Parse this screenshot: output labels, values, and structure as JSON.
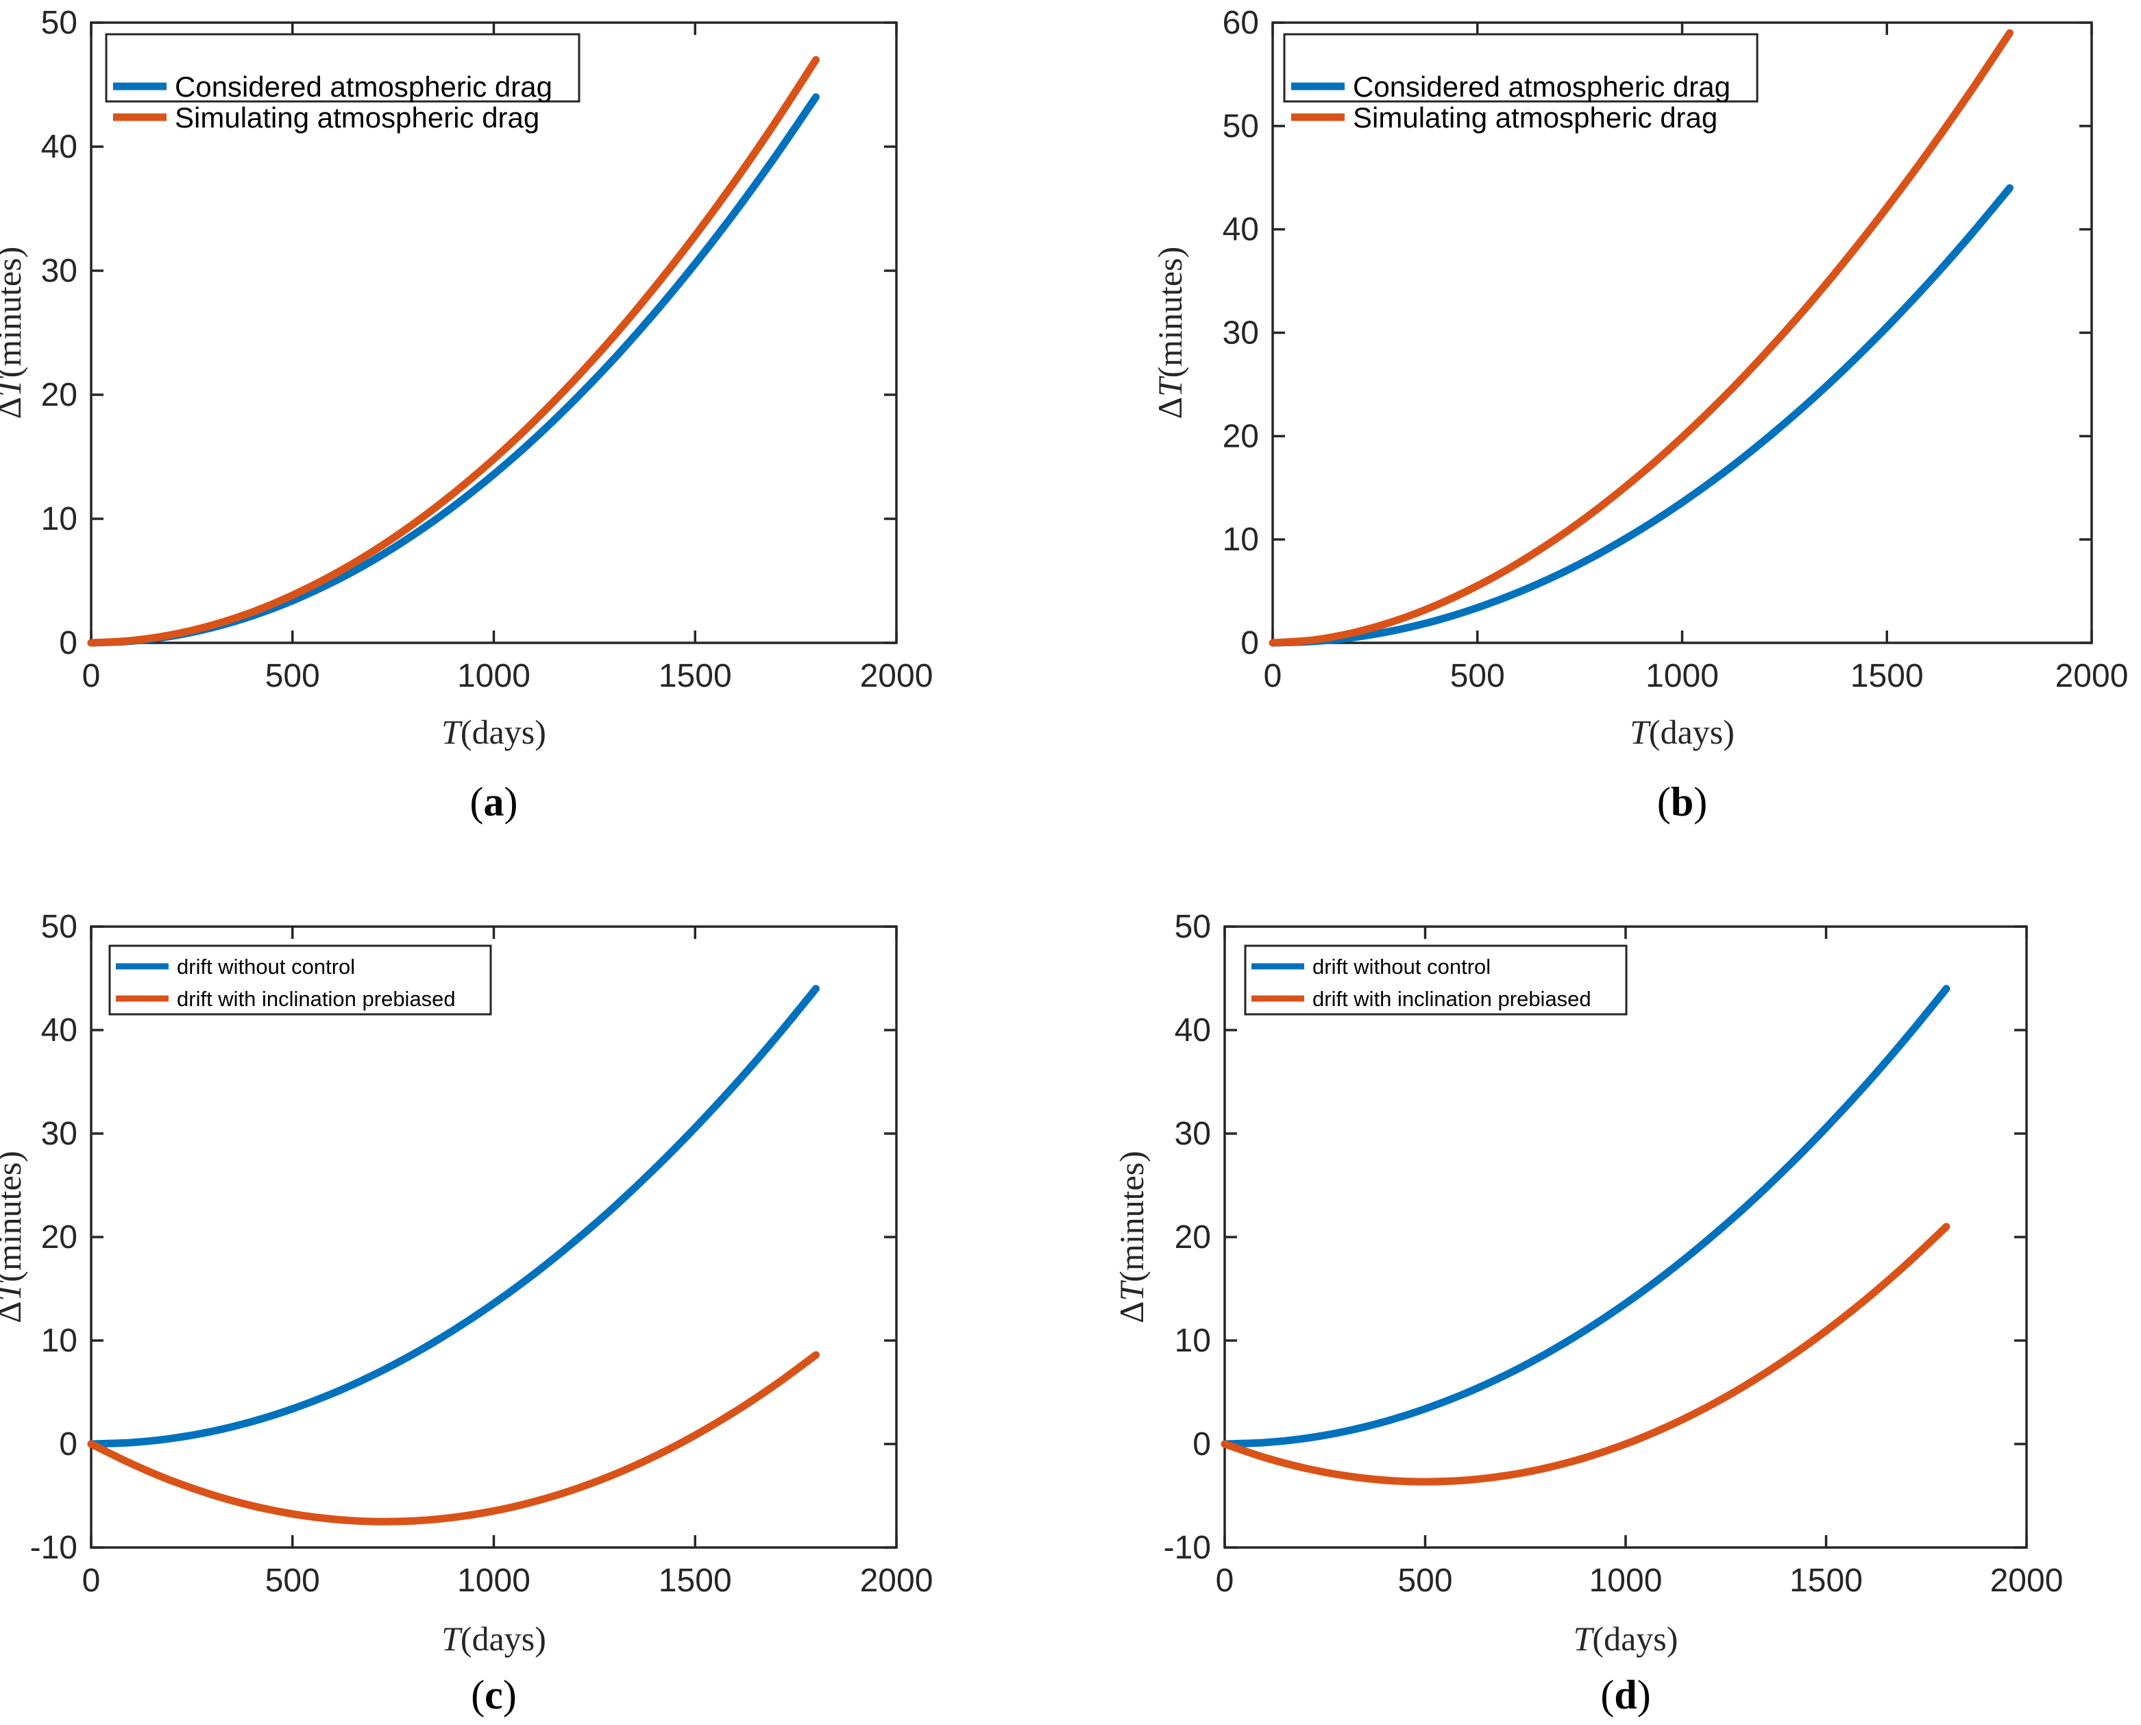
{
  "figure_bg": "#ffffff",
  "colors": {
    "blue": "#0072BD",
    "orange": "#D95319",
    "axis": "#262626",
    "text": "#262626",
    "sublabel": "#000000"
  },
  "x_days": [
    0,
    100,
    200,
    300,
    400,
    500,
    600,
    700,
    800,
    900,
    1000,
    1100,
    1200,
    1300,
    1400,
    1500,
    1600,
    1700,
    1800
  ],
  "chart_data": [
    {
      "type": "line",
      "sublabel": "(a)",
      "xlabel": "T(days)",
      "ylabel": "ΔT(minutes)",
      "xlim": [
        0,
        2000
      ],
      "ylim": [
        0,
        50
      ],
      "xticks": [
        0,
        500,
        1000,
        1500,
        2000
      ],
      "yticks": [
        0,
        10,
        20,
        30,
        40,
        50
      ],
      "grid": false,
      "legend_position": "top-left",
      "legend": [
        "Considered atmospheric drag",
        "Simulating atmospheric drag"
      ],
      "series": [
        {
          "name": "Considered atmospheric drag",
          "color": "#0072BD",
          "values": [
            0,
            0.14,
            0.54,
            1.22,
            2.17,
            3.4,
            4.89,
            6.65,
            8.69,
            11.0,
            13.58,
            16.43,
            19.56,
            22.95,
            26.62,
            30.56,
            34.76,
            39.25,
            44.0
          ]
        },
        {
          "name": "Simulating atmospheric drag",
          "color": "#D95319",
          "values": [
            0,
            0.18,
            0.65,
            1.42,
            2.48,
            3.84,
            5.47,
            7.38,
            9.58,
            12.06,
            14.82,
            17.86,
            21.19,
            24.79,
            28.68,
            32.84,
            37.27,
            42.0,
            47.0
          ]
        }
      ]
    },
    {
      "type": "line",
      "sublabel": "(b)",
      "xlabel": "T(days)",
      "ylabel": "ΔT(minutes)",
      "xlim": [
        0,
        2000
      ],
      "ylim": [
        0,
        60
      ],
      "xticks": [
        0,
        500,
        1000,
        1500,
        2000
      ],
      "yticks": [
        0,
        10,
        20,
        30,
        40,
        50,
        60
      ],
      "grid": false,
      "legend_position": "top-left",
      "legend": [
        "Considered atmospheric drag",
        "Simulating atmospheric drag"
      ],
      "series": [
        {
          "name": "Considered atmospheric drag",
          "color": "#0072BD",
          "values": [
            0,
            0.14,
            0.54,
            1.22,
            2.17,
            3.4,
            4.89,
            6.65,
            8.69,
            11.0,
            13.58,
            16.43,
            19.56,
            22.95,
            26.62,
            30.56,
            34.76,
            39.25,
            44.0
          ]
        },
        {
          "name": "Simulating atmospheric drag",
          "color": "#D95319",
          "values": [
            0,
            0.28,
            1.01,
            2.14,
            3.65,
            5.52,
            7.73,
            10.28,
            13.16,
            16.37,
            19.89,
            23.72,
            27.87,
            32.31,
            37.06,
            42.11,
            47.45,
            53.08,
            59.0
          ]
        }
      ]
    },
    {
      "type": "line",
      "sublabel": "(c)",
      "xlabel": "T(days)",
      "ylabel": "ΔT(minutes)",
      "xlim": [
        0,
        2000
      ],
      "ylim": [
        -10,
        50
      ],
      "xticks": [
        0,
        500,
        1000,
        1500,
        2000
      ],
      "yticks": [
        -10,
        0,
        10,
        20,
        30,
        40,
        50
      ],
      "grid": false,
      "legend_position": "top-left",
      "legend": [
        "drift without control",
        "drift with inclination prebiased"
      ],
      "series": [
        {
          "name": "drift without control",
          "color": "#0072BD",
          "values": [
            0,
            0.14,
            0.54,
            1.22,
            2.17,
            3.4,
            4.89,
            6.65,
            8.69,
            11.0,
            13.58,
            16.43,
            19.56,
            22.95,
            26.62,
            30.56,
            34.76,
            39.25,
            44.0
          ]
        },
        {
          "name": "drift with inclination prebiased",
          "color": "#D95319",
          "values": [
            0,
            -1.91,
            -3.55,
            -4.9,
            -5.97,
            -6.76,
            -7.26,
            -7.49,
            -7.43,
            -7.09,
            -6.47,
            -5.57,
            -4.39,
            -2.93,
            -1.18,
            0.85,
            3.15,
            5.74,
            8.6
          ]
        }
      ]
    },
    {
      "type": "line",
      "sublabel": "(d)",
      "xlabel": "T(days)",
      "ylabel": "ΔT(minutes)",
      "xlim": [
        0,
        2000
      ],
      "ylim": [
        -10,
        50
      ],
      "xticks": [
        0,
        500,
        1000,
        1500,
        2000
      ],
      "yticks": [
        -10,
        0,
        10,
        20,
        30,
        40,
        50
      ],
      "grid": false,
      "legend_position": "top-left",
      "legend": [
        "drift without control",
        "drift with inclination prebiased"
      ],
      "series": [
        {
          "name": "drift without control",
          "color": "#0072BD",
          "values": [
            0,
            0.14,
            0.54,
            1.22,
            2.17,
            3.4,
            4.89,
            6.65,
            8.69,
            11.0,
            13.58,
            16.43,
            19.56,
            22.95,
            26.62,
            30.56,
            34.76,
            39.25,
            44.0
          ]
        },
        {
          "name": "drift with inclination prebiased",
          "color": "#D95319",
          "values": [
            0,
            -1.31,
            -2.33,
            -3.06,
            -3.5,
            -3.65,
            -3.5,
            -3.06,
            -2.33,
            -1.31,
            0.0,
            1.61,
            3.5,
            5.69,
            8.17,
            10.94,
            14.0,
            17.36,
            21.0
          ]
        }
      ]
    }
  ]
}
